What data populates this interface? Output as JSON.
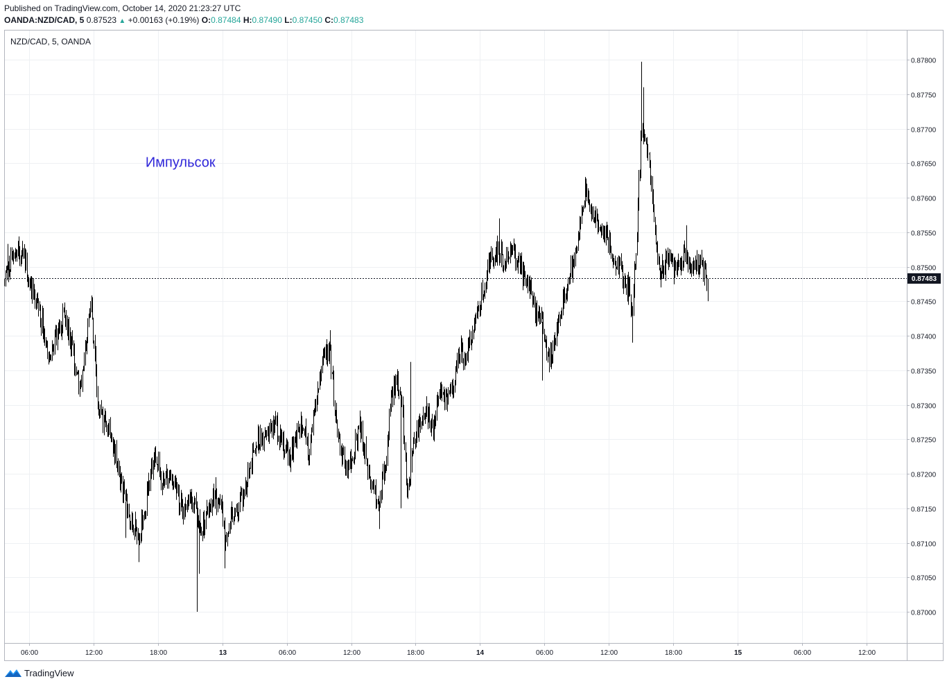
{
  "header": {
    "published": "Published on TradingView.com, October 14, 2020 21:23:27 UTC",
    "symbol": "OANDA:NZD/CAD, 5",
    "last": "0.87523",
    "change": "+0.00163 (+0.19%)",
    "o_label": "O:",
    "o_value": "0.87484",
    "h_label": "H:",
    "h_value": "0.87490",
    "l_label": "L:",
    "l_value": "0.87450",
    "c_label": "C:",
    "c_value": "0.87483"
  },
  "footer": {
    "brand": "TradingView"
  },
  "colors": {
    "candle": "#000000",
    "grid": "#eef0f3",
    "annotation": "#2f26d9",
    "axis": "#787b86"
  },
  "chart_data": {
    "type": "candlestick",
    "title": "NZD/CAD, 5, OANDA",
    "price_tag": "0.87483",
    "current_price": 0.87483,
    "annotation": {
      "text": "Импульсок",
      "time": 17.1,
      "price": 0.87652
    },
    "y_ticks": [
      "0.87800",
      "0.87750",
      "0.87700",
      "0.87650",
      "0.87600",
      "0.87550",
      "0.87500",
      "0.87450",
      "0.87400",
      "0.87350",
      "0.87300",
      "0.87250",
      "0.87200",
      "0.87150",
      "0.87100",
      "0.87050",
      "0.87000"
    ],
    "ylim": [
      0.86958,
      0.87842
    ],
    "x_ticks": [
      {
        "label": "06:00",
        "t": 6,
        "bold": false
      },
      {
        "label": "12:00",
        "t": 12,
        "bold": false
      },
      {
        "label": "18:00",
        "t": 18,
        "bold": false
      },
      {
        "label": "13",
        "t": 24,
        "bold": true
      },
      {
        "label": "06:00",
        "t": 30,
        "bold": false
      },
      {
        "label": "12:00",
        "t": 36,
        "bold": false
      },
      {
        "label": "18:00",
        "t": 42,
        "bold": false
      },
      {
        "label": "14",
        "t": 48,
        "bold": true
      },
      {
        "label": "06:00",
        "t": 54,
        "bold": false
      },
      {
        "label": "12:00",
        "t": 60,
        "bold": false
      },
      {
        "label": "18:00",
        "t": 66,
        "bold": false
      },
      {
        "label": "15",
        "t": 72,
        "bold": true
      },
      {
        "label": "06:00",
        "t": 78,
        "bold": false
      },
      {
        "label": "12:00",
        "t": 84,
        "bold": false
      }
    ],
    "time_unit": "hours since Oct 12 00:00 UTC",
    "price_path": [
      [
        3.7,
        0.87475
      ],
      [
        4.3,
        0.87515
      ],
      [
        5.0,
        0.8752
      ],
      [
        5.7,
        0.87505
      ],
      [
        6.0,
        0.8748
      ],
      [
        6.5,
        0.87455
      ],
      [
        7.2,
        0.8742
      ],
      [
        7.8,
        0.8737
      ],
      [
        8.5,
        0.874
      ],
      [
        9.3,
        0.8743
      ],
      [
        10.0,
        0.8738
      ],
      [
        10.7,
        0.8732
      ],
      [
        11.3,
        0.8739
      ],
      [
        11.8,
        0.8744
      ],
      [
        12.4,
        0.873
      ],
      [
        13.0,
        0.8727
      ],
      [
        13.6,
        0.8726
      ],
      [
        14.3,
        0.872
      ],
      [
        15.0,
        0.8716
      ],
      [
        15.5,
        0.8713
      ],
      [
        16.2,
        0.8711
      ],
      [
        16.8,
        0.8715
      ],
      [
        17.3,
        0.8721
      ],
      [
        17.8,
        0.87235
      ],
      [
        18.3,
        0.8718
      ],
      [
        18.9,
        0.872
      ],
      [
        19.5,
        0.8718
      ],
      [
        20.2,
        0.8715
      ],
      [
        20.9,
        0.8716
      ],
      [
        21.5,
        0.8715
      ],
      [
        22.0,
        0.8712
      ],
      [
        22.6,
        0.8714
      ],
      [
        23.2,
        0.87165
      ],
      [
        23.8,
        0.8716
      ],
      [
        24.2,
        0.871
      ],
      [
        24.8,
        0.8714
      ],
      [
        25.4,
        0.8715
      ],
      [
        26.0,
        0.8717
      ],
      [
        26.6,
        0.8722
      ],
      [
        27.2,
        0.8725
      ],
      [
        27.8,
        0.87245
      ],
      [
        28.4,
        0.87265
      ],
      [
        29.0,
        0.8727
      ],
      [
        29.6,
        0.8724
      ],
      [
        30.2,
        0.8722
      ],
      [
        30.8,
        0.8725
      ],
      [
        31.4,
        0.8728
      ],
      [
        32.0,
        0.8723
      ],
      [
        32.6,
        0.873
      ],
      [
        33.0,
        0.8733
      ],
      [
        33.5,
        0.8737
      ],
      [
        34.0,
        0.8738
      ],
      [
        34.5,
        0.8729
      ],
      [
        35.0,
        0.8724
      ],
      [
        35.6,
        0.872
      ],
      [
        36.2,
        0.8723
      ],
      [
        36.8,
        0.8727
      ],
      [
        37.4,
        0.8722
      ],
      [
        38.0,
        0.8718
      ],
      [
        38.6,
        0.8716
      ],
      [
        39.2,
        0.8722
      ],
      [
        39.7,
        0.873
      ],
      [
        40.2,
        0.8734
      ],
      [
        40.7,
        0.873
      ],
      [
        41.2,
        0.8718
      ],
      [
        41.8,
        0.8724
      ],
      [
        42.4,
        0.8727
      ],
      [
        43.0,
        0.8729
      ],
      [
        43.6,
        0.8726
      ],
      [
        44.2,
        0.8732
      ],
      [
        44.8,
        0.8731
      ],
      [
        45.4,
        0.8732
      ],
      [
        46.0,
        0.8738
      ],
      [
        46.6,
        0.8737
      ],
      [
        47.2,
        0.874
      ],
      [
        47.8,
        0.8743
      ],
      [
        48.4,
        0.8748
      ],
      [
        49.0,
        0.8751
      ],
      [
        49.6,
        0.8752
      ],
      [
        50.2,
        0.8751
      ],
      [
        50.8,
        0.8752
      ],
      [
        51.4,
        0.87515
      ],
      [
        52.0,
        0.8749
      ],
      [
        52.6,
        0.8747
      ],
      [
        53.2,
        0.8743
      ],
      [
        53.8,
        0.8742
      ],
      [
        54.3,
        0.8736
      ],
      [
        54.8,
        0.8738
      ],
      [
        55.3,
        0.8743
      ],
      [
        55.8,
        0.8746
      ],
      [
        56.3,
        0.8748
      ],
      [
        56.8,
        0.8752
      ],
      [
        57.3,
        0.8756
      ],
      [
        57.8,
        0.8761
      ],
      [
        58.3,
        0.8758
      ],
      [
        58.8,
        0.8757
      ],
      [
        59.3,
        0.8756
      ],
      [
        59.8,
        0.8754
      ],
      [
        60.3,
        0.8752
      ],
      [
        60.8,
        0.8751
      ],
      [
        61.3,
        0.8748
      ],
      [
        61.8,
        0.8747
      ],
      [
        62.2,
        0.8744
      ],
      [
        62.6,
        0.8755
      ],
      [
        63.0,
        0.877
      ],
      [
        63.4,
        0.8768
      ],
      [
        63.8,
        0.8764
      ],
      [
        64.2,
        0.8757
      ],
      [
        64.6,
        0.8751
      ],
      [
        65.0,
        0.87495
      ],
      [
        65.5,
        0.87515
      ],
      [
        66.0,
        0.875
      ],
      [
        66.5,
        0.8751
      ],
      [
        67.0,
        0.8752
      ],
      [
        67.5,
        0.87505
      ],
      [
        68.0,
        0.875
      ],
      [
        68.5,
        0.8751
      ],
      [
        68.9,
        0.8749
      ],
      [
        69.2,
        0.8747
      ]
    ],
    "extremes": [
      [
        21.6,
        0.87
      ],
      [
        21.8,
        0.87055
      ],
      [
        16.2,
        0.87072
      ],
      [
        24.2,
        0.87063
      ],
      [
        15.0,
        0.87107
      ],
      [
        38.6,
        0.8712
      ],
      [
        40.6,
        0.8715
      ],
      [
        23.4,
        0.87195
      ],
      [
        34.0,
        0.87408
      ],
      [
        41.5,
        0.87362
      ],
      [
        11.8,
        0.87452
      ],
      [
        4.0,
        0.87533
      ],
      [
        53.8,
        0.87335
      ],
      [
        56.3,
        0.87474
      ],
      [
        57.8,
        0.8763
      ],
      [
        62.2,
        0.8739
      ],
      [
        63.0,
        0.87797
      ],
      [
        63.2,
        0.8776
      ],
      [
        49.8,
        0.8757
      ],
      [
        64.8,
        0.8747
      ],
      [
        67.2,
        0.8756
      ],
      [
        69.2,
        0.8745
      ]
    ]
  }
}
